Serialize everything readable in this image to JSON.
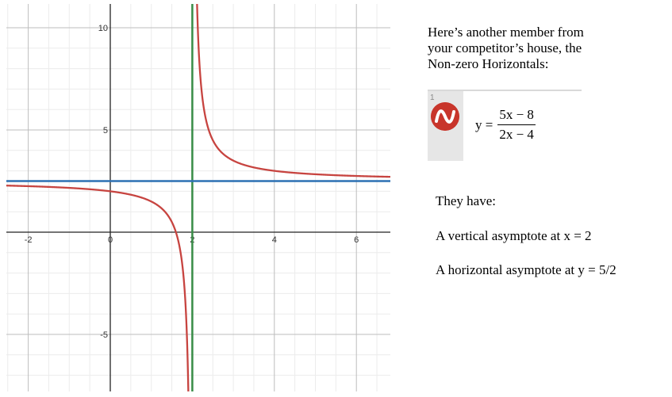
{
  "chart_data": {
    "type": "line",
    "xlim": [
      -2.6,
      6.8
    ],
    "ylim": [
      -7.7,
      10.9
    ],
    "x_ticks": [
      -2,
      0,
      2,
      4,
      6
    ],
    "x_tick_labels": [
      "-2",
      "0",
      "2",
      "4",
      "6"
    ],
    "y_ticks": [
      -5,
      5,
      10
    ],
    "y_tick_labels": [
      "-5",
      "5",
      "10"
    ],
    "grid": true,
    "functions": [
      {
        "name": "",
        "expression": "y = (5x - 8)/(2x - 4)",
        "kind": "rational",
        "numerator": [
          5,
          -8
        ],
        "denominator": [
          2,
          -4
        ],
        "color": "#c74440"
      },
      {
        "name": "",
        "expression": "x = 2",
        "kind": "vertical",
        "value": 2,
        "color": "#388c46"
      },
      {
        "name": "",
        "expression": "y = 2.5",
        "kind": "horizontal",
        "value": 2.5,
        "color": "#2d70b3"
      }
    ]
  },
  "panel": {
    "intro_line1": "Here’s another member from",
    "intro_line2": "your competitor’s house, the",
    "intro_line3": "Non-zero Horizontals:",
    "expression_index": "1",
    "expression_icon": "desmos-logo-icon",
    "expression_lhs": "y =",
    "expression_numerator": "5x − 8",
    "expression_denominator": "2x − 4",
    "they_have": "They have:",
    "fact_vertical": "A vertical asymptote at x = 2",
    "fact_horizontal": "A horizontal asymptote at y = 5/2"
  }
}
